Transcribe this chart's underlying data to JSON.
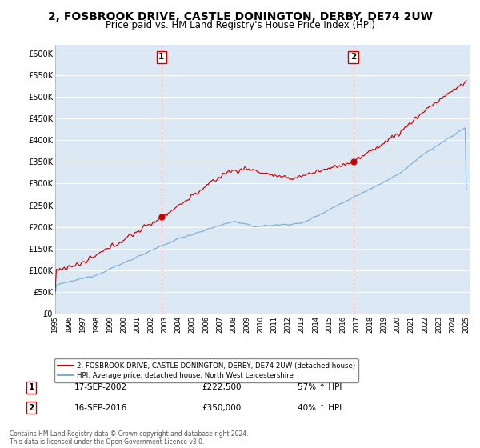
{
  "title": "2, FOSBROOK DRIVE, CASTLE DONINGTON, DERBY, DE74 2UW",
  "subtitle": "Price paid vs. HM Land Registry's House Price Index (HPI)",
  "title_fontsize": 10,
  "subtitle_fontsize": 8.5,
  "background_color": "#ffffff",
  "plot_bg_color": "#dce9f5",
  "grid_color": "#ffffff",
  "ylim": [
    0,
    620000
  ],
  "yticks": [
    0,
    50000,
    100000,
    150000,
    200000,
    250000,
    300000,
    350000,
    400000,
    450000,
    500000,
    550000,
    600000
  ],
  "ytick_labels": [
    "£0",
    "£50K",
    "£100K",
    "£150K",
    "£200K",
    "£250K",
    "£300K",
    "£350K",
    "£400K",
    "£450K",
    "£500K",
    "£550K",
    "£600K"
  ],
  "sale1_price": 222500,
  "sale1_label": "1",
  "sale1_date_str": "17-SEP-2002",
  "sale1_hpi_pct": "57% ↑ HPI",
  "sale2_price": 350000,
  "sale2_label": "2",
  "sale2_date_str": "16-SEP-2016",
  "sale2_hpi_pct": "40% ↑ HPI",
  "legend_line1": "2, FOSBROOK DRIVE, CASTLE DONINGTON, DERBY, DE74 2UW (detached house)",
  "legend_line2": "HPI: Average price, detached house, North West Leicestershire",
  "red_color": "#cc0000",
  "blue_color": "#7bafd4",
  "footer": "Contains HM Land Registry data © Crown copyright and database right 2024.\nThis data is licensed under the Open Government Licence v3.0.",
  "x_start_year": 1995,
  "x_end_year": 2025
}
